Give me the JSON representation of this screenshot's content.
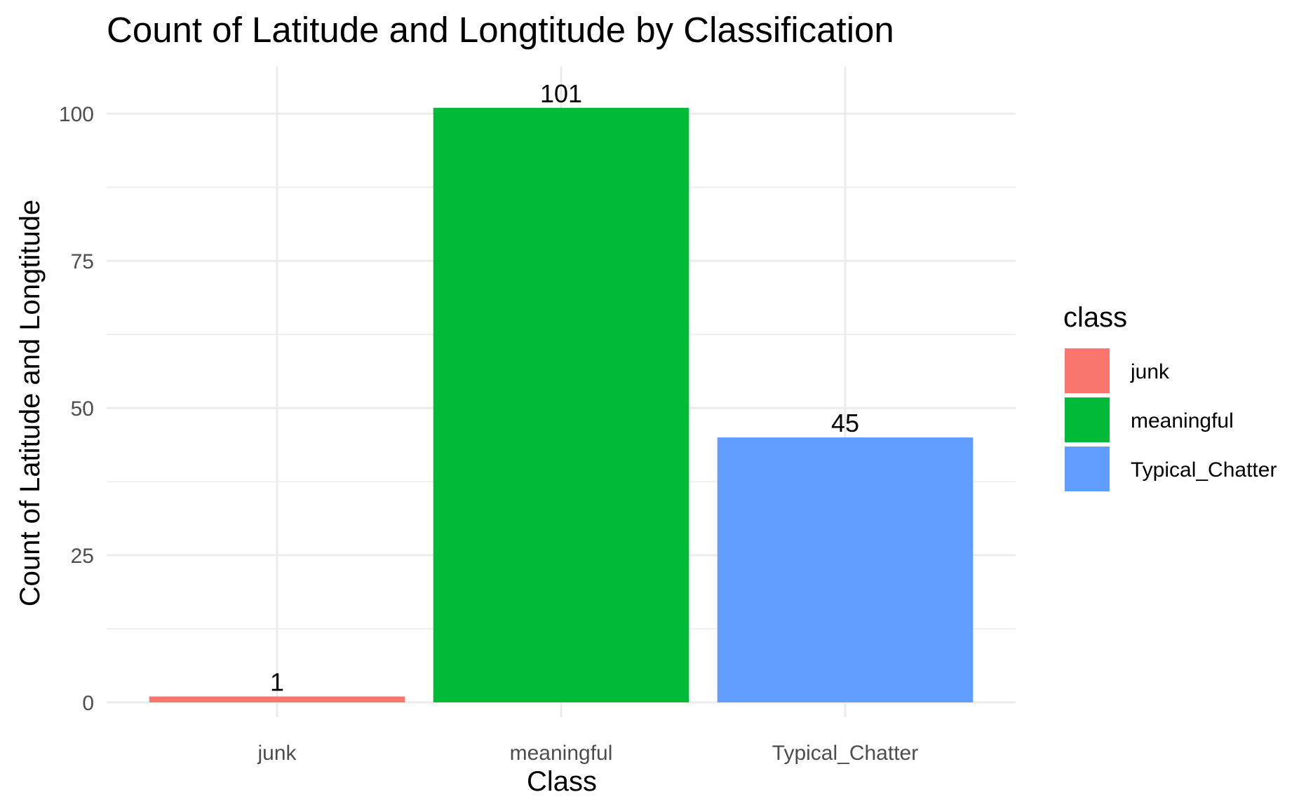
{
  "chart_data": {
    "type": "bar",
    "title": "Count of Latitude and Longtitude by Classification",
    "xlabel": "Class",
    "ylabel": "Count of Latitude and Longtitude",
    "categories": [
      "junk",
      "meaningful",
      "Typical_Chatter"
    ],
    "values": [
      1,
      101,
      45
    ],
    "data_labels": [
      "1",
      "101",
      "45"
    ],
    "colors": [
      "#F8766D",
      "#00BA38",
      "#619CFF"
    ],
    "ylim": [
      -2.5,
      108
    ],
    "yticks": [
      0,
      25,
      50,
      75,
      100
    ],
    "ytick_labels": [
      "0",
      "25",
      "50",
      "75",
      "100"
    ],
    "grid": true,
    "legend": {
      "title": "class",
      "position": "right",
      "entries": [
        "junk",
        "meaningful",
        "Typical_Chatter"
      ]
    }
  }
}
